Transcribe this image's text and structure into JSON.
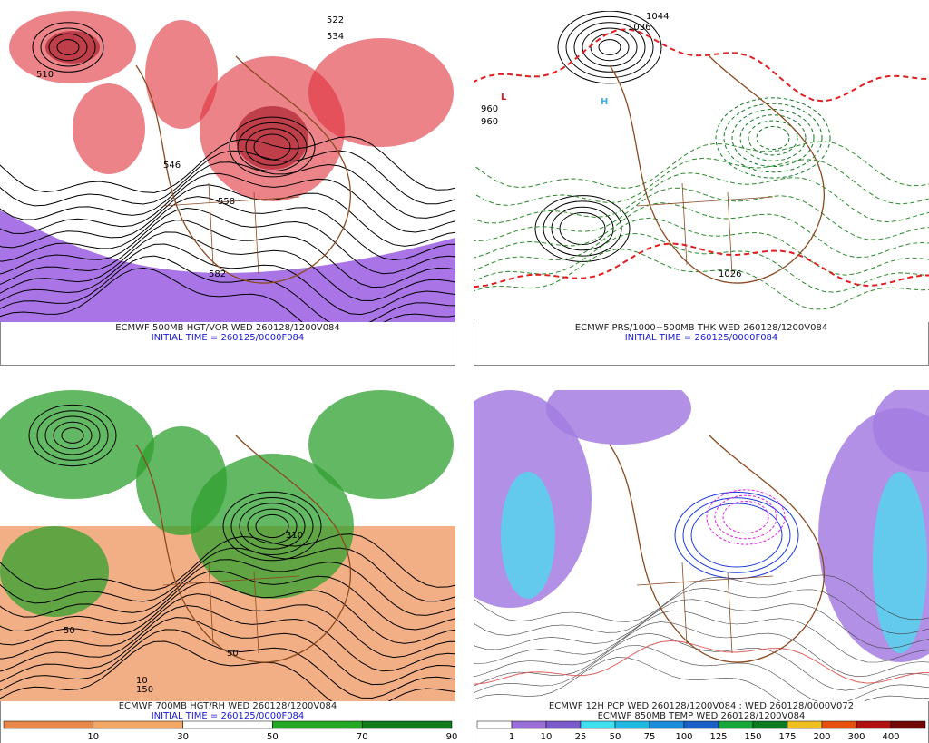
{
  "panels": [
    {
      "captions": [
        "ECMWF 500MB HGT/VOR WED 260128/1200V084",
        "INITIAL TIME = 260125/0000F084"
      ],
      "contour_labels": [
        "522",
        "534",
        "510",
        "558",
        "582",
        "546"
      ]
    },
    {
      "captions": [
        "ECMWF PRS/1000−500MB THK WED 260128/1200V084",
        "INITIAL TIME = 260125/0000F084"
      ],
      "contour_labels": [
        "1044",
        "1036",
        "960",
        "960",
        "1026",
        "H",
        "L"
      ]
    },
    {
      "captions": [
        "ECMWF 700MB HGT/RH WED 260128/1200V084",
        "INITIAL TIME = 260125/0000F084"
      ],
      "contour_labels": [
        "310",
        "50",
        "10",
        "50",
        "150"
      ],
      "colorbar": {
        "labels": [
          "10",
          "30",
          "50",
          "70",
          "90"
        ],
        "colors": [
          "#e8894a",
          "#f4a866",
          "#ffffff",
          "#22a822",
          "#0f7a1a"
        ]
      }
    },
    {
      "captions": [
        "ECMWF 12H PCP WED 260128/1200V084 : WED 260128/0000V072",
        "ECMWF 850MB TEMP WED 260128/1200V084"
      ],
      "contour_labels": [],
      "colorbar": {
        "labels": [
          "1",
          "10",
          "25",
          "50",
          "75",
          "100",
          "125",
          "150",
          "175",
          "200",
          "300",
          "400"
        ],
        "colors": [
          "#ffffff",
          "#9a6fd8",
          "#7b5acc",
          "#3ee0f0",
          "#1fb8e0",
          "#1a8cd8",
          "#1a5ec8",
          "#17a63a",
          "#0d7a22",
          "#f0c020",
          "#e85010",
          "#b01010",
          "#700808"
        ]
      }
    }
  ]
}
